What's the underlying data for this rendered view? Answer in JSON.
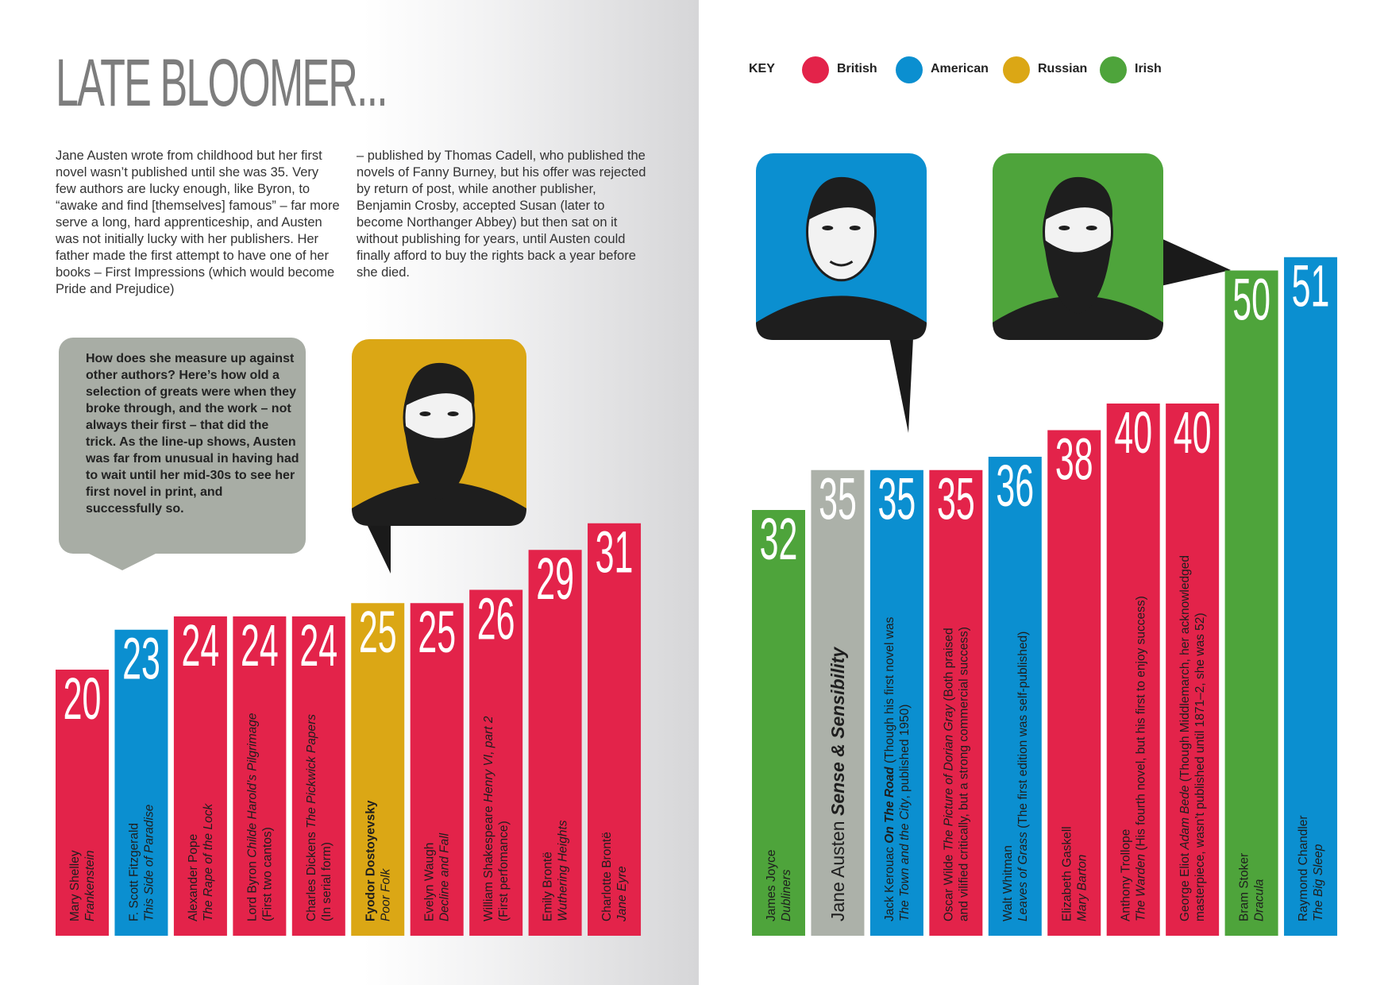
{
  "title": "LATE BLOOMER...",
  "intro": {
    "col1": "Jane Austen wrote from childhood but her first novel wasn’t published until she was 35. Very few authors are lucky enough, like Byron, to “awake and find [themselves] famous” – far more serve a long, hard apprenticeship, and Austen was not initially lucky with her publishers. Her father made the first attempt to have one of her books – First Impressions (which would become Pride and Prejudice)",
    "col2": "– published by Thomas Cadell, who published the novels of Fanny Burney, but his offer was rejected by return of post, while another publisher, Benjamin Crosby, accepted Susan (later to become Northanger Abbey) but then sat on it without publishing for years, until Austen could finally afford to buy the rights back a year before she died."
  },
  "question": "How does she measure up against other authors? Here’s how old a selection of greats were when they broke through, and the work – not always their first – that did the trick. As the line-up shows, Austen was far from unusual in having had to wait until her mid-30s to see her first novel in print, and successfully so.",
  "key": {
    "label": "KEY",
    "items": [
      {
        "name": "British",
        "color": "#e3234a"
      },
      {
        "name": "American",
        "color": "#0b8fd0"
      },
      {
        "name": "Russian",
        "color": "#dba715"
      },
      {
        "name": "Irish",
        "color": "#4ea43b"
      }
    ]
  },
  "colors": {
    "British": "#e3234a",
    "American": "#0b8fd0",
    "Russian": "#dba715",
    "Irish": "#4ea43b",
    "Austen": "#acb1a9",
    "portrait_ink": "#1e1e1e"
  },
  "portraits": [
    {
      "name": "dostoyevsky-portrait",
      "nationality": "Russian"
    },
    {
      "name": "kerouac-portrait",
      "nationality": "American"
    },
    {
      "name": "stoker-portrait",
      "nationality": "Irish"
    }
  ],
  "chart_data": {
    "type": "bar",
    "categories": [
      "Mary Shelley",
      "F. Scott Fitzgerald",
      "Alexander Pope",
      "Lord Byron",
      "Charles Dickens",
      "Fyodor Dostoyevsky",
      "Evelyn Waugh",
      "William Shakespeare",
      "Emily Brontë",
      "Charlotte Brontë",
      "James Joyce",
      "Jane Austen",
      "Jack Kerouac",
      "Oscar Wilde",
      "Walt Whitman",
      "Elizabeth Gaskell",
      "Anthony Trollope",
      "George Eliot",
      "Bram Stoker",
      "Raymond Chandler"
    ],
    "values": [
      20,
      23,
      24,
      24,
      24,
      25,
      25,
      26,
      29,
      31,
      32,
      35,
      35,
      35,
      36,
      38,
      40,
      40,
      50,
      51
    ],
    "bars": [
      {
        "age": 20,
        "nationality": "British",
        "lines": [
          {
            "runs": [
              {
                "t": "Mary Shelley",
                "s": "n"
              }
            ]
          },
          {
            "runs": [
              {
                "t": "Frankenstein",
                "s": "i"
              }
            ]
          }
        ]
      },
      {
        "age": 23,
        "nationality": "American",
        "lines": [
          {
            "runs": [
              {
                "t": "F. Scott Fitzgerald",
                "s": "n"
              }
            ]
          },
          {
            "runs": [
              {
                "t": "This Side of Paradise",
                "s": "i"
              }
            ]
          }
        ]
      },
      {
        "age": 24,
        "nationality": "British",
        "lines": [
          {
            "runs": [
              {
                "t": "Alexander Pope",
                "s": "n"
              }
            ]
          },
          {
            "runs": [
              {
                "t": "The Rape of the Lock",
                "s": "i"
              }
            ]
          }
        ]
      },
      {
        "age": 24,
        "nationality": "British",
        "lines": [
          {
            "runs": [
              {
                "t": "Lord Byron ",
                "s": "n"
              },
              {
                "t": "Childe Harold’s Pilgrimage",
                "s": "i"
              }
            ]
          },
          {
            "runs": [
              {
                "t": "(First two cantos)",
                "s": "l"
              }
            ]
          }
        ]
      },
      {
        "age": 24,
        "nationality": "British",
        "lines": [
          {
            "runs": [
              {
                "t": "Charles Dickens ",
                "s": "n"
              },
              {
                "t": "The Pickwick Papers",
                "s": "i"
              }
            ]
          },
          {
            "runs": [
              {
                "t": "(In serial form)",
                "s": "l"
              }
            ]
          }
        ]
      },
      {
        "age": 25,
        "nationality": "Russian",
        "lines": [
          {
            "runs": [
              {
                "t": "Fyodor Dostoyevsky",
                "s": "b"
              }
            ]
          },
          {
            "runs": [
              {
                "t": "Poor Folk",
                "s": "i"
              }
            ]
          }
        ]
      },
      {
        "age": 25,
        "nationality": "British",
        "lines": [
          {
            "runs": [
              {
                "t": "Evelyn Waugh",
                "s": "n"
              }
            ]
          },
          {
            "runs": [
              {
                "t": "Decline and Fall",
                "s": "i"
              }
            ]
          }
        ]
      },
      {
        "age": 26,
        "nationality": "British",
        "lines": [
          {
            "runs": [
              {
                "t": "William Shakespeare ",
                "s": "n"
              },
              {
                "t": "Henry VI, part 2",
                "s": "i"
              }
            ]
          },
          {
            "runs": [
              {
                "t": "(First perfomance)",
                "s": "l"
              }
            ]
          }
        ]
      },
      {
        "age": 29,
        "nationality": "British",
        "lines": [
          {
            "runs": [
              {
                "t": "Emily Brontë",
                "s": "n"
              }
            ]
          },
          {
            "runs": [
              {
                "t": "Wuthering Heights",
                "s": "i"
              }
            ]
          }
        ]
      },
      {
        "age": 31,
        "nationality": "British",
        "lines": [
          {
            "runs": [
              {
                "t": "Charlotte Brontë",
                "s": "n"
              }
            ]
          },
          {
            "runs": [
              {
                "t": "Jane Eyre",
                "s": "i"
              }
            ]
          }
        ]
      },
      {
        "age": 32,
        "nationality": "Irish",
        "lines": [
          {
            "runs": [
              {
                "t": "James Joyce",
                "s": "n"
              }
            ]
          },
          {
            "runs": [
              {
                "t": "Dubliners",
                "s": "i"
              }
            ]
          }
        ]
      },
      {
        "age": 35,
        "nationality": "Austen",
        "lines": [
          {
            "runs": [
              {
                "t": "Jane Austen ",
                "s": "n"
              },
              {
                "t": "Sense & Sensibility",
                "s": "bi"
              }
            ]
          }
        ]
      },
      {
        "age": 35,
        "nationality": "American",
        "lines": [
          {
            "runs": [
              {
                "t": "Jack Kerouac ",
                "s": "n"
              },
              {
                "t": "On The Road",
                "s": "bi"
              },
              {
                "t": " (Though his first novel was",
                "s": "l"
              }
            ]
          },
          {
            "runs": [
              {
                "t": "The Town and the City",
                "s": "li"
              },
              {
                "t": ", published 1950)",
                "s": "l"
              }
            ]
          }
        ]
      },
      {
        "age": 35,
        "nationality": "British",
        "lines": [
          {
            "runs": [
              {
                "t": "Oscar Wilde ",
                "s": "n"
              },
              {
                "t": "The Picture of Dorian Gray",
                "s": "i"
              },
              {
                "t": " (Both praised",
                "s": "l"
              }
            ]
          },
          {
            "runs": [
              {
                "t": "and vilified critically, but a strong commercial success)",
                "s": "l"
              }
            ]
          }
        ]
      },
      {
        "age": 36,
        "nationality": "American",
        "lines": [
          {
            "runs": [
              {
                "t": "Walt Whitman",
                "s": "n"
              }
            ]
          },
          {
            "runs": [
              {
                "t": "Leaves of Grass",
                "s": "i"
              },
              {
                "t": " (The first edition was self-published)",
                "s": "l"
              }
            ]
          }
        ]
      },
      {
        "age": 38,
        "nationality": "British",
        "lines": [
          {
            "runs": [
              {
                "t": "Elizabeth Gaskell",
                "s": "n"
              }
            ]
          },
          {
            "runs": [
              {
                "t": "Mary Barton",
                "s": "i"
              }
            ]
          }
        ]
      },
      {
        "age": 40,
        "nationality": "British",
        "lines": [
          {
            "runs": [
              {
                "t": "Anthony Trollope",
                "s": "n"
              }
            ]
          },
          {
            "runs": [
              {
                "t": "The Warden",
                "s": "i"
              },
              {
                "t": " (His fourth novel, but his first to enjoy success)",
                "s": "l"
              }
            ]
          }
        ]
      },
      {
        "age": 40,
        "nationality": "British",
        "lines": [
          {
            "runs": [
              {
                "t": "George Eliot ",
                "s": "n"
              },
              {
                "t": "Adam Bede",
                "s": "i"
              },
              {
                "t": " (Though Middlemarch, her acknowledged",
                "s": "l"
              }
            ]
          },
          {
            "runs": [
              {
                "t": "masterpiece, wasn’t published until 1871–2, she was 52)",
                "s": "l"
              }
            ]
          }
        ]
      },
      {
        "age": 50,
        "nationality": "Irish",
        "lines": [
          {
            "runs": [
              {
                "t": "Bram Stoker",
                "s": "n"
              }
            ]
          },
          {
            "runs": [
              {
                "t": "Dracula",
                "s": "i"
              }
            ]
          }
        ]
      },
      {
        "age": 51,
        "nationality": "American",
        "lines": [
          {
            "runs": [
              {
                "t": "Raymond Chandler",
                "s": "n"
              }
            ]
          },
          {
            "runs": [
              {
                "t": "The Big Sleep",
                "s": "i"
              }
            ]
          }
        ]
      }
    ],
    "ylim": [
      0,
      51
    ],
    "grid": false
  }
}
